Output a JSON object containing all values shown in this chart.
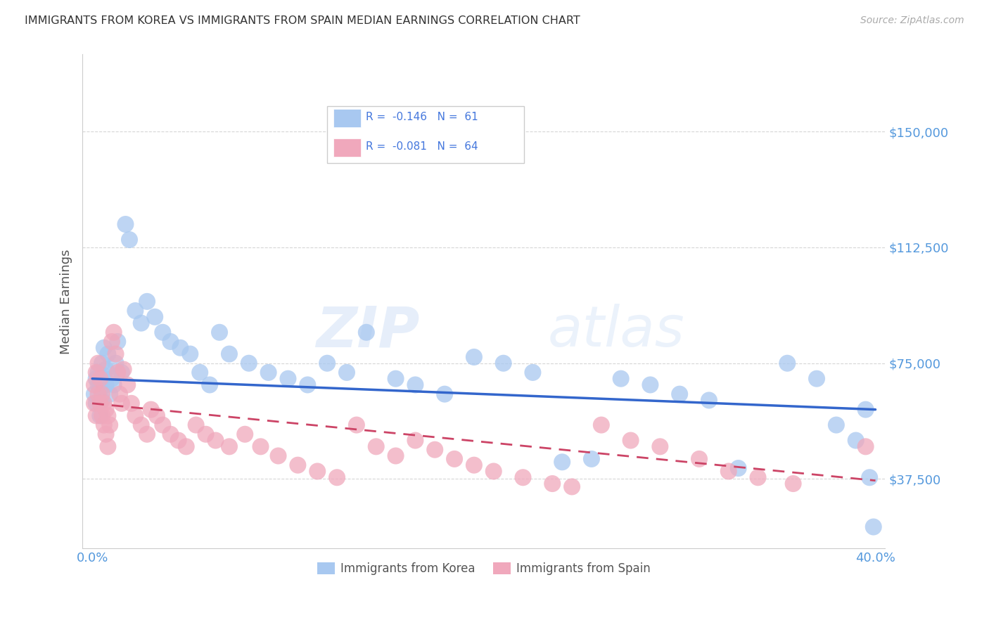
{
  "title": "IMMIGRANTS FROM KOREA VS IMMIGRANTS FROM SPAIN MEDIAN EARNINGS CORRELATION CHART",
  "source": "Source: ZipAtlas.com",
  "ylabel": "Median Earnings",
  "watermark": "ZIPatlas",
  "xlim": [
    -0.005,
    0.405
  ],
  "ylim": [
    15000,
    175000
  ],
  "xticks": [
    0.0,
    0.1,
    0.2,
    0.3,
    0.4
  ],
  "xticklabels": [
    "0.0%",
    "",
    "",
    "",
    "40.0%"
  ],
  "yticks": [
    37500,
    75000,
    112500,
    150000
  ],
  "yticklabels": [
    "$37,500",
    "$75,000",
    "$112,500",
    "$150,000"
  ],
  "korea_color": "#a8c8f0",
  "spain_color": "#f0a8bc",
  "korea_line_color": "#3366cc",
  "spain_line_color": "#cc4466",
  "korea_R": "-0.146",
  "korea_N": "61",
  "spain_R": "-0.081",
  "spain_N": "64",
  "legend_text_color": "#4477dd",
  "legend_korea": "Immigrants from Korea",
  "legend_spain": "Immigrants from Spain",
  "background_color": "#ffffff",
  "grid_color": "#cccccc",
  "title_color": "#333333",
  "axis_tick_color": "#5599dd",
  "korea_scatter_x": [
    0.001,
    0.002,
    0.002,
    0.003,
    0.003,
    0.004,
    0.004,
    0.005,
    0.005,
    0.006,
    0.006,
    0.007,
    0.007,
    0.008,
    0.009,
    0.01,
    0.011,
    0.012,
    0.013,
    0.015,
    0.017,
    0.019,
    0.022,
    0.025,
    0.028,
    0.032,
    0.036,
    0.04,
    0.045,
    0.05,
    0.055,
    0.06,
    0.065,
    0.07,
    0.08,
    0.09,
    0.1,
    0.11,
    0.12,
    0.13,
    0.14,
    0.155,
    0.165,
    0.18,
    0.195,
    0.21,
    0.225,
    0.24,
    0.255,
    0.27,
    0.285,
    0.3,
    0.315,
    0.33,
    0.355,
    0.37,
    0.38,
    0.39,
    0.395,
    0.397,
    0.399
  ],
  "korea_scatter_y": [
    65000,
    62000,
    70000,
    68000,
    72000,
    58000,
    67000,
    75000,
    63000,
    71000,
    80000,
    73000,
    68000,
    78000,
    65000,
    70000,
    68000,
    75000,
    82000,
    72000,
    120000,
    115000,
    92000,
    88000,
    95000,
    90000,
    85000,
    82000,
    80000,
    78000,
    72000,
    68000,
    85000,
    78000,
    75000,
    72000,
    70000,
    68000,
    75000,
    72000,
    85000,
    70000,
    68000,
    65000,
    77000,
    75000,
    72000,
    43000,
    44000,
    70000,
    68000,
    65000,
    63000,
    41000,
    75000,
    70000,
    55000,
    50000,
    60000,
    38000,
    22000
  ],
  "spain_scatter_x": [
    0.001,
    0.001,
    0.002,
    0.002,
    0.003,
    0.003,
    0.004,
    0.004,
    0.005,
    0.005,
    0.006,
    0.006,
    0.007,
    0.007,
    0.008,
    0.008,
    0.009,
    0.01,
    0.011,
    0.012,
    0.013,
    0.014,
    0.015,
    0.016,
    0.018,
    0.02,
    0.022,
    0.025,
    0.028,
    0.03,
    0.033,
    0.036,
    0.04,
    0.044,
    0.048,
    0.053,
    0.058,
    0.063,
    0.07,
    0.078,
    0.086,
    0.095,
    0.105,
    0.115,
    0.125,
    0.135,
    0.145,
    0.155,
    0.165,
    0.175,
    0.185,
    0.195,
    0.205,
    0.22,
    0.235,
    0.245,
    0.26,
    0.275,
    0.29,
    0.31,
    0.325,
    0.34,
    0.358,
    0.395
  ],
  "spain_scatter_y": [
    62000,
    68000,
    58000,
    72000,
    65000,
    75000,
    62000,
    70000,
    58000,
    65000,
    55000,
    62000,
    52000,
    60000,
    48000,
    58000,
    55000,
    82000,
    85000,
    78000,
    72000,
    65000,
    62000,
    73000,
    68000,
    62000,
    58000,
    55000,
    52000,
    60000,
    58000,
    55000,
    52000,
    50000,
    48000,
    55000,
    52000,
    50000,
    48000,
    52000,
    48000,
    45000,
    42000,
    40000,
    38000,
    55000,
    48000,
    45000,
    50000,
    47000,
    44000,
    42000,
    40000,
    38000,
    36000,
    35000,
    55000,
    50000,
    48000,
    44000,
    40000,
    38000,
    36000,
    48000
  ]
}
